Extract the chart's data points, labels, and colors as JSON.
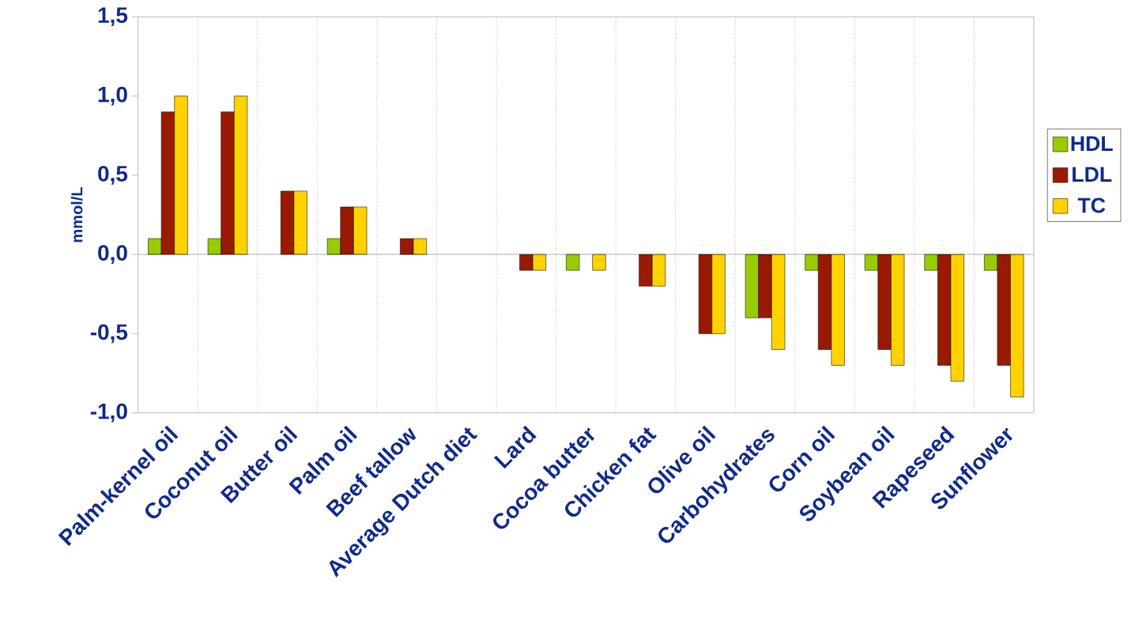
{
  "chart_data": {
    "type": "bar",
    "ylabel": "mmol/L",
    "categories": [
      "Palm-kernel oil",
      "Coconut oil",
      "Butter oil",
      "Palm oil",
      "Beef tallow",
      "Average Dutch diet",
      "Lard",
      "Cocoa butter",
      "Chicken fat",
      "Olive oil",
      "Carbohydrates",
      "Corn oil",
      "Soybean oil",
      "Rapeseed",
      "Sunflower"
    ],
    "series": [
      {
        "name": "HDL",
        "color": "#99cc00",
        "values": [
          0.1,
          0.1,
          null,
          0.1,
          null,
          null,
          null,
          -0.1,
          null,
          null,
          -0.4,
          -0.1,
          -0.1,
          -0.1,
          -0.1
        ]
      },
      {
        "name": "LDL",
        "color": "#991a00",
        "values": [
          0.9,
          0.9,
          0.4,
          0.3,
          0.1,
          null,
          -0.1,
          null,
          -0.2,
          -0.5,
          -0.4,
          -0.6,
          -0.6,
          -0.7,
          -0.7
        ]
      },
      {
        "name": "TC",
        "color": "#ffd200",
        "values": [
          1.0,
          1.0,
          0.4,
          0.3,
          0.1,
          null,
          -0.1,
          -0.1,
          -0.2,
          -0.5,
          -0.6,
          -0.7,
          -0.7,
          -0.8,
          -0.9
        ]
      }
    ],
    "ylim": [
      -1.0,
      1.5
    ],
    "yticks": [
      {
        "value": -1.0,
        "label": "-1,0"
      },
      {
        "value": -0.5,
        "label": "-0,5"
      },
      {
        "value": 0,
        "label": "0,0"
      },
      {
        "value": 0.5,
        "label": "0,5"
      },
      {
        "value": 1.0,
        "label": "1,0"
      },
      {
        "value": 1.5,
        "label": "1,5"
      }
    ],
    "grid": "x",
    "legend": "right"
  }
}
